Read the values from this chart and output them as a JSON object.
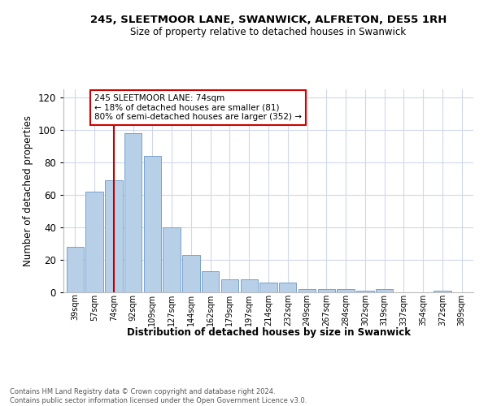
{
  "title_line1": "245, SLEETMOOR LANE, SWANWICK, ALFRETON, DE55 1RH",
  "title_line2": "Size of property relative to detached houses in Swanwick",
  "xlabel": "Distribution of detached houses by size in Swanwick",
  "ylabel": "Number of detached properties",
  "categories": [
    "39sqm",
    "57sqm",
    "74sqm",
    "92sqm",
    "109sqm",
    "127sqm",
    "144sqm",
    "162sqm",
    "179sqm",
    "197sqm",
    "214sqm",
    "232sqm",
    "249sqm",
    "267sqm",
    "284sqm",
    "302sqm",
    "319sqm",
    "337sqm",
    "354sqm",
    "372sqm",
    "389sqm"
  ],
  "values": [
    28,
    62,
    69,
    98,
    84,
    40,
    23,
    13,
    8,
    8,
    6,
    6,
    2,
    2,
    2,
    1,
    2,
    0,
    0,
    1,
    0
  ],
  "bar_color": "#b8cfe8",
  "bar_edge_color": "#6898c8",
  "highlight_index": 2,
  "highlight_color": "#c00000",
  "ylim": [
    0,
    125
  ],
  "yticks": [
    0,
    20,
    40,
    60,
    80,
    100,
    120
  ],
  "annotation_text": "245 SLEETMOOR LANE: 74sqm\n← 18% of detached houses are smaller (81)\n80% of semi-detached houses are larger (352) →",
  "annotation_box_color": "#ffffff",
  "annotation_box_edge": "#cc0000",
  "footer_line1": "Contains HM Land Registry data © Crown copyright and database right 2024.",
  "footer_line2": "Contains public sector information licensed under the Open Government Licence v3.0.",
  "background_color": "#ffffff",
  "grid_color": "#d0d8e8"
}
